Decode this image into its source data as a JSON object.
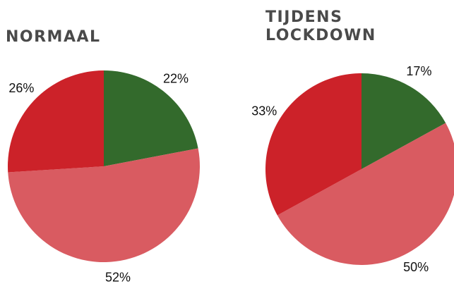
{
  "chart_data": [
    {
      "type": "pie",
      "title": "NORMAAL",
      "values": [
        22,
        52,
        26
      ],
      "value_labels": [
        "22%",
        "52%",
        "26%"
      ],
      "colors": [
        "#336a2c",
        "#d95b61",
        "#cc2229"
      ]
    },
    {
      "type": "pie",
      "title": "TIJDENS LOCKDOWN",
      "values": [
        17,
        50,
        33
      ],
      "value_labels": [
        "17%",
        "50%",
        "33%"
      ],
      "colors": [
        "#336a2c",
        "#d95b61",
        "#cc2229"
      ]
    }
  ]
}
